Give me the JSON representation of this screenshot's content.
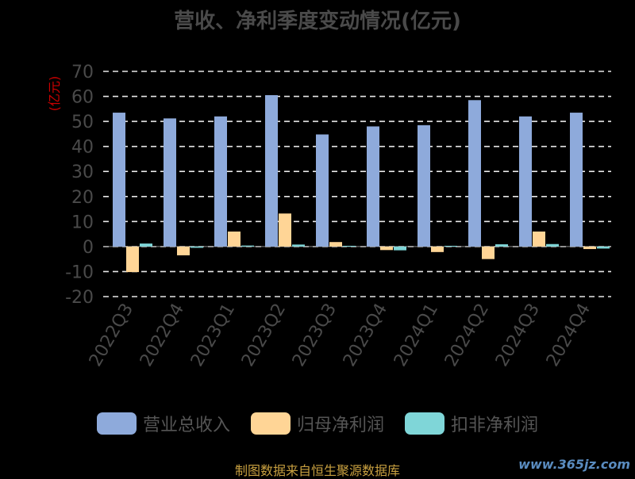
{
  "chart_data": {
    "type": "bar",
    "title": "营收、净利季度变动情况(亿元)",
    "ylabel": "(亿元)",
    "categories": [
      "2022Q3",
      "2022Q4",
      "2023Q1",
      "2023Q2",
      "2023Q3",
      "2023Q4",
      "2024Q1",
      "2024Q2",
      "2024Q3",
      "2024Q4"
    ],
    "ylim": [
      -20,
      70
    ],
    "yticks": [
      -20,
      -10,
      0,
      10,
      20,
      30,
      40,
      50,
      60,
      70
    ],
    "grid": true,
    "legend_position": "bottom",
    "series": [
      {
        "name": "营业总收入",
        "color": "#8eaadb",
        "values": [
          53.5,
          51.2,
          52.0,
          60.5,
          44.8,
          48.0,
          48.5,
          58.5,
          52.0,
          53.5
        ]
      },
      {
        "name": "归母净利润",
        "color": "#ffd596",
        "values": [
          -10.2,
          -3.5,
          6.0,
          13.2,
          1.8,
          -1.4,
          -2.2,
          -5.0,
          6.0,
          -1.0
        ]
      },
      {
        "name": "扣非净利润",
        "color": "#7fd6d8",
        "values": [
          1.2,
          -0.5,
          0.4,
          0.8,
          0.3,
          -1.5,
          0.3,
          0.9,
          1.0,
          -0.8
        ]
      }
    ]
  },
  "source": "制图数据来自恒生聚源数据库",
  "watermark": "www.365jz.com"
}
